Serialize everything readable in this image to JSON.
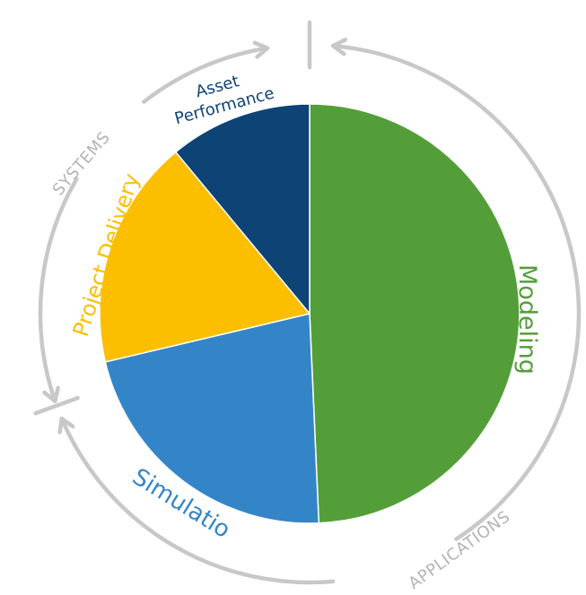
{
  "chart_data": {
    "type": "pie",
    "title": "",
    "slices": [
      {
        "label": "Modeling",
        "value": 49.3,
        "color": "#549e39"
      },
      {
        "label": "Simulation",
        "value": 22.0,
        "color": "#3485c8"
      },
      {
        "label": "Project Delivery",
        "value": 17.7,
        "color": "#fbbf00"
      },
      {
        "label": "Asset Performance",
        "value": 11.0,
        "color": "#0e4375"
      }
    ],
    "slice_labels": {
      "modeling": "Modeling",
      "simulation": "Simulation",
      "project_delivery": "Project Delivery",
      "asset_line1": "Asset",
      "asset_line2": "Performance"
    },
    "outer_ring": {
      "systems_label": "SYSTEMS",
      "applications_label": "APPLICATIONS",
      "arrow_color": "#c8c8c8",
      "label_color": "#b4b4b4"
    }
  }
}
